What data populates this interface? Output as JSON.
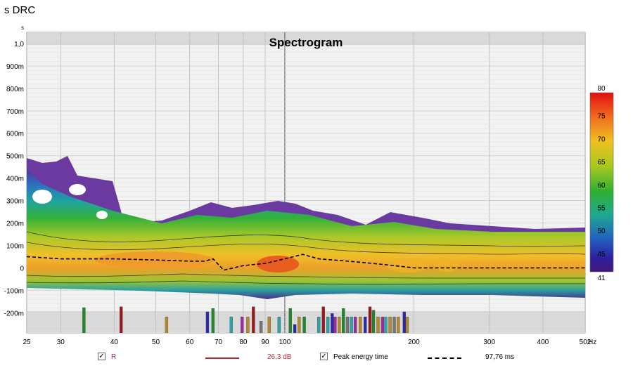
{
  "window": {
    "title": "s DRC"
  },
  "chart_data": {
    "type": "heatmap",
    "title": "Spectrogram",
    "x_unit": "Hz",
    "y_unit": "s",
    "x_ticks": [
      "25",
      "30",
      "40",
      "50",
      "60",
      "70",
      "80",
      "90",
      "100",
      "200",
      "300",
      "400",
      "502"
    ],
    "x_tick_values": [
      25,
      30,
      40,
      50,
      60,
      70,
      80,
      90,
      100,
      200,
      300,
      400,
      502
    ],
    "x_scale": "log",
    "y_ticks": [
      "1,0",
      "900m",
      "800m",
      "700m",
      "600m",
      "500m",
      "400m",
      "300m",
      "200m",
      "100m",
      "0",
      "-100m",
      "-200m"
    ],
    "y_tick_values": [
      1.0,
      0.9,
      0.8,
      0.7,
      0.6,
      0.5,
      0.4,
      0.3,
      0.2,
      0.1,
      0.0,
      -0.1,
      -0.2
    ],
    "ylim": [
      -0.29,
      1.05
    ],
    "xlim": [
      25,
      502
    ],
    "colorbar": {
      "ticks": [
        "80",
        "75",
        "70",
        "65",
        "60",
        "55",
        "50",
        "45",
        "41"
      ],
      "tick_values": [
        80,
        75,
        70,
        65,
        60,
        55,
        50,
        45,
        41
      ],
      "range": [
        41,
        80
      ],
      "unit": "dB"
    },
    "peak_energy_time_ms": [
      [
        25,
        0.05
      ],
      [
        30,
        0.04
      ],
      [
        40,
        0.04
      ],
      [
        50,
        0.035
      ],
      [
        60,
        0.03
      ],
      [
        65,
        0.03
      ],
      [
        68,
        0.04
      ],
      [
        72,
        -0.01
      ],
      [
        80,
        0.01
      ],
      [
        90,
        0.02
      ],
      [
        100,
        0.04
      ],
      [
        110,
        0.06
      ],
      [
        120,
        0.04
      ],
      [
        140,
        0.03
      ],
      [
        160,
        0.02
      ],
      [
        180,
        0.01
      ],
      [
        200,
        0.0
      ],
      [
        250,
        0.0
      ],
      [
        300,
        0.0
      ],
      [
        400,
        0.0
      ],
      [
        502,
        0.0
      ]
    ],
    "event_markers": [
      {
        "f": 34,
        "c": "#1f8a2a",
        "h": 0.6
      },
      {
        "f": 41.5,
        "c": "#9a1b1b",
        "h": 0.62
      },
      {
        "f": 53,
        "c": "#b48a2a",
        "h": 0.38
      },
      {
        "f": 66,
        "c": "#2a2ab0",
        "h": 0.5
      },
      {
        "f": 68,
        "c": "#1f8a2a",
        "h": 0.58
      },
      {
        "f": 75,
        "c": "#2aa6a6",
        "h": 0.38
      },
      {
        "f": 79.5,
        "c": "#a02aa0",
        "h": 0.38
      },
      {
        "f": 82,
        "c": "#b48a2a",
        "h": 0.38
      },
      {
        "f": 84.5,
        "c": "#9a1b1b",
        "h": 0.62
      },
      {
        "f": 88,
        "c": "#777777",
        "h": 0.28
      },
      {
        "f": 92,
        "c": "#b48a2a",
        "h": 0.38
      },
      {
        "f": 97,
        "c": "#2aa6a6",
        "h": 0.38
      },
      {
        "f": 103,
        "c": "#1f8a2a",
        "h": 0.58
      },
      {
        "f": 105.5,
        "c": "#2a2ab0",
        "h": 0.2
      },
      {
        "f": 108,
        "c": "#b48a2a",
        "h": 0.38
      },
      {
        "f": 111,
        "c": "#1f8a2a",
        "h": 0.38
      },
      {
        "f": 120,
        "c": "#2aa6a6",
        "h": 0.38
      },
      {
        "f": 123,
        "c": "#9a1b1b",
        "h": 0.62
      },
      {
        "f": 126,
        "c": "#2aa6a6",
        "h": 0.38
      },
      {
        "f": 129,
        "c": "#2a2ab0",
        "h": 0.46
      },
      {
        "f": 131,
        "c": "#a02aa0",
        "h": 0.38
      },
      {
        "f": 134,
        "c": "#b48a2a",
        "h": 0.38
      },
      {
        "f": 137,
        "c": "#1f8a2a",
        "h": 0.58
      },
      {
        "f": 140,
        "c": "#777777",
        "h": 0.38
      },
      {
        "f": 143,
        "c": "#2aa6a6",
        "h": 0.38
      },
      {
        "f": 146,
        "c": "#a02aa0",
        "h": 0.38
      },
      {
        "f": 150,
        "c": "#b48a2a",
        "h": 0.38
      },
      {
        "f": 154,
        "c": "#2a2ab0",
        "h": 0.38
      },
      {
        "f": 158,
        "c": "#9a1b1b",
        "h": 0.62
      },
      {
        "f": 161,
        "c": "#1f8a2a",
        "h": 0.54
      },
      {
        "f": 165,
        "c": "#b48a2a",
        "h": 0.38
      },
      {
        "f": 169,
        "c": "#a02aa0",
        "h": 0.38
      },
      {
        "f": 172,
        "c": "#2aa6a6",
        "h": 0.38
      },
      {
        "f": 176,
        "c": "#b48a2a",
        "h": 0.38
      },
      {
        "f": 180,
        "c": "#777777",
        "h": 0.38
      },
      {
        "f": 184,
        "c": "#b48a2a",
        "h": 0.38
      },
      {
        "f": 190,
        "c": "#2a2ab0",
        "h": 0.5
      },
      {
        "f": 193,
        "c": "#b48a2a",
        "h": 0.38
      }
    ]
  },
  "legend": {
    "r_label": "R",
    "r_value": "26,3 dB",
    "r_color": "#b22a3e",
    "pet_label": "Peak energy time",
    "pet_value": "97,76 ms",
    "check_glyph": "✓"
  }
}
